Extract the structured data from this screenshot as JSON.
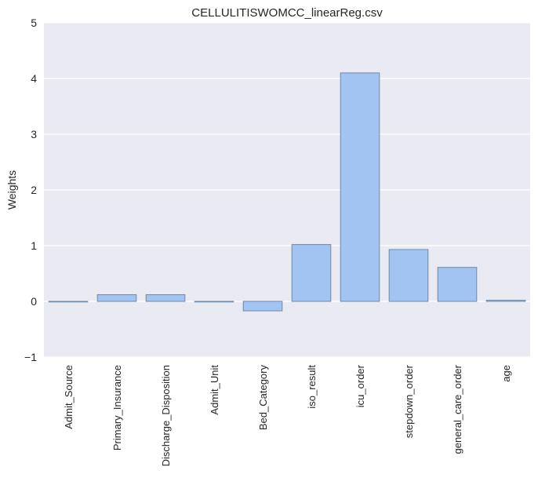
{
  "chart_data": {
    "type": "bar",
    "title": "CELLULITISWOMCC_linearReg.csv",
    "xlabel": "",
    "ylabel": "Weights",
    "categories": [
      "Admit_Source",
      "Primary_Insurance",
      "Discharge_Disposition",
      "Admit_Unit",
      "Bed_Category",
      "iso_result",
      "icu_order",
      "stepdown_order",
      "general_care_order",
      "age"
    ],
    "values": [
      -0.01,
      0.12,
      0.12,
      0.0,
      -0.17,
      1.02,
      4.1,
      0.93,
      0.61,
      0.02
    ],
    "ylim": [
      -1,
      5
    ],
    "yticks": [
      -1,
      0,
      1,
      2,
      3,
      4,
      5
    ],
    "ytick_labels": [
      "−1",
      "0",
      "1",
      "2",
      "3",
      "4",
      "5"
    ],
    "grid": true,
    "colors": {
      "bar_fill": "#a1c4f2",
      "bar_edge": "#6f8aa8",
      "plot_bg": "#eaeaf2",
      "grid": "#ffffff"
    }
  }
}
